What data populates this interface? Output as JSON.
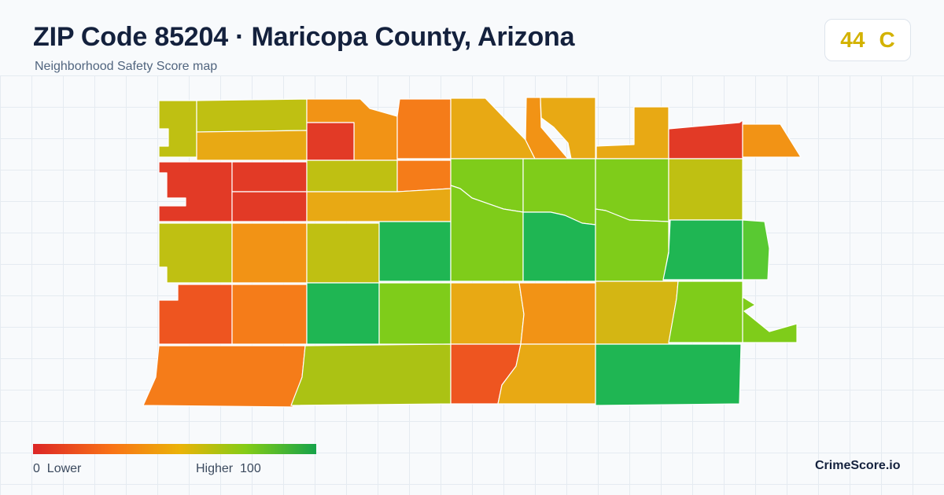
{
  "header": {
    "title": "ZIP Code 85204 · Maricopa County, Arizona",
    "subtitle": "Neighborhood Safety Score map"
  },
  "score_badge": {
    "score": "44",
    "grade": "C",
    "color": "#d3b200"
  },
  "legend": {
    "low_value": "0",
    "low_label": "Lower",
    "high_label": "Higher",
    "high_value": "100",
    "colors": [
      "#dc2626",
      "#f97316",
      "#eab308",
      "#84cc16",
      "#16a34a"
    ]
  },
  "brand": "CrimeScore.io",
  "map": {
    "color_scale": {
      "red": "#e23a26",
      "red_orange": "#ee5520",
      "orange": "#f57c19",
      "amber": "#f29315",
      "gold": "#e8a914",
      "olive": "#bfc012",
      "lime": "#7fcc1a",
      "bright_green": "#59c932",
      "green": "#1fb653"
    }
  }
}
